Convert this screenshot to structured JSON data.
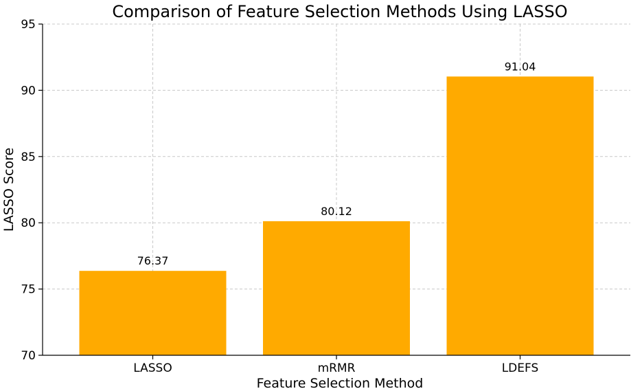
{
  "chart_data": {
    "type": "bar",
    "title": "Comparison of Feature Selection Methods Using LASSO",
    "xlabel": "Feature Selection Method",
    "ylabel": "LASSO Score",
    "categories": [
      "LASSO",
      "mRMR",
      "LDEFS"
    ],
    "values": [
      76.37,
      80.12,
      91.04
    ],
    "data_labels": [
      "76.37",
      "80.12",
      "91.04"
    ],
    "ylim": [
      70,
      95
    ],
    "yticks": [
      70,
      75,
      80,
      85,
      90,
      95
    ],
    "ytick_labels": [
      "70",
      "75",
      "80",
      "85",
      "90",
      "95"
    ],
    "grid": true,
    "bar_color": "#FFAA00",
    "legend": "none"
  }
}
